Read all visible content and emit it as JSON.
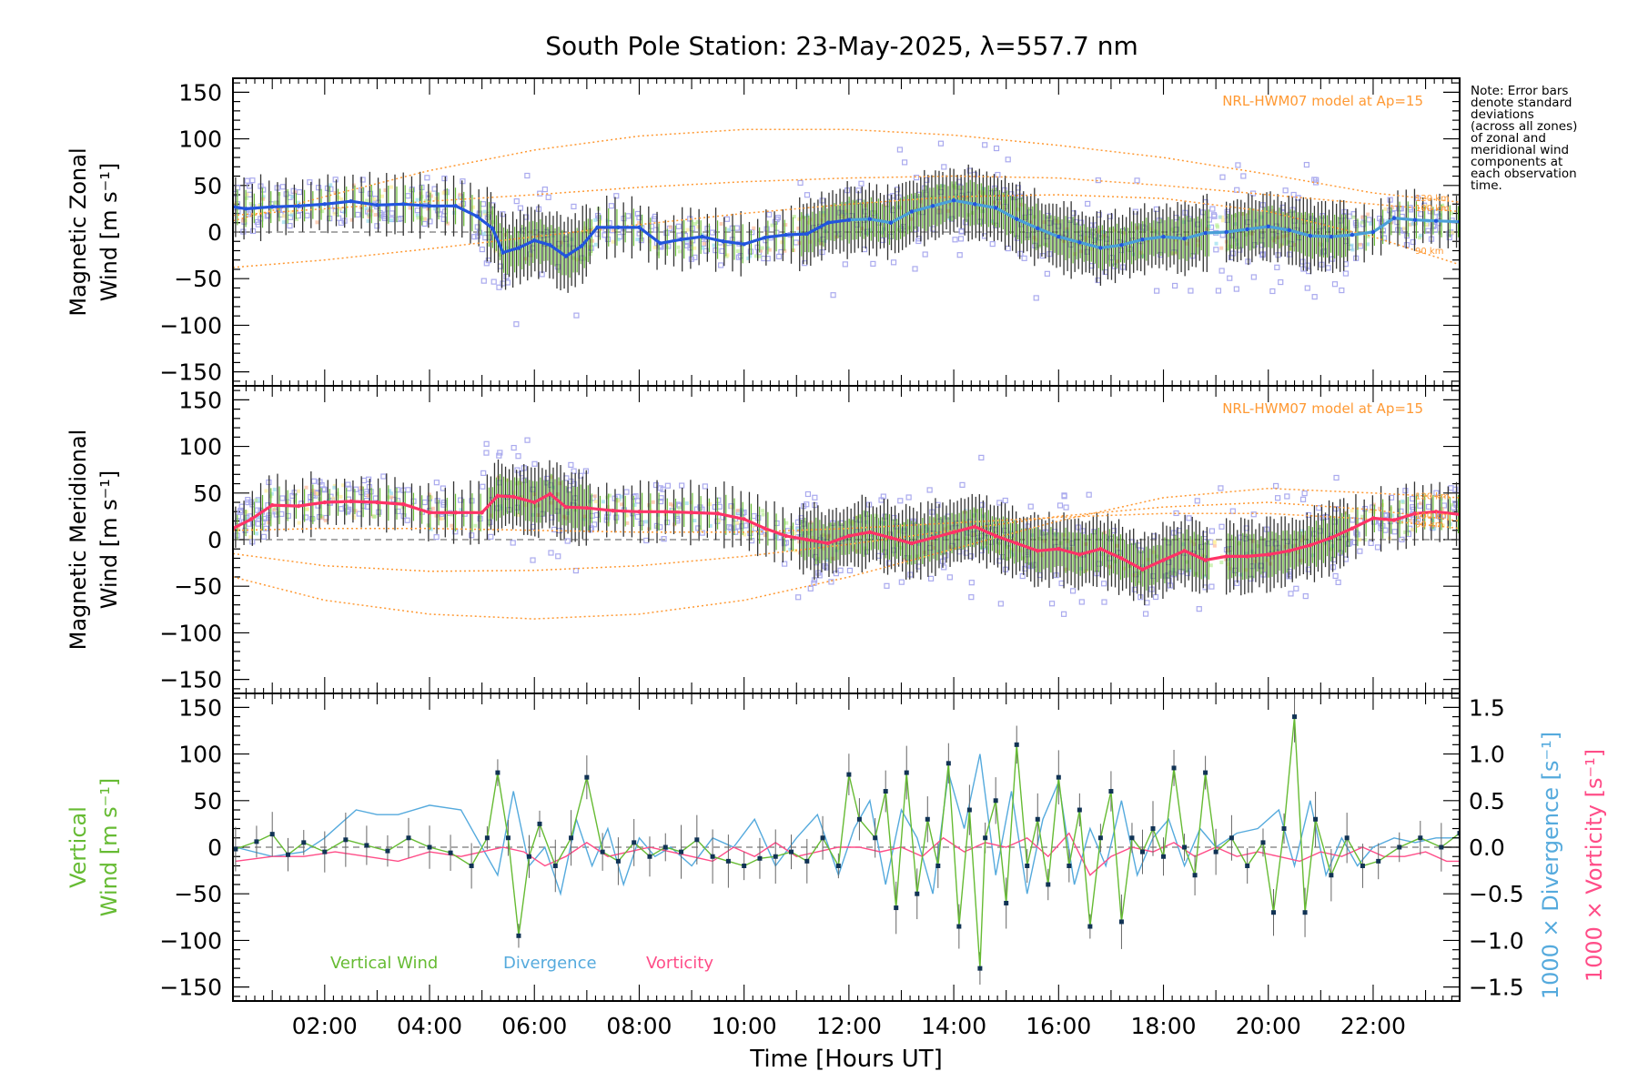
{
  "colors": {
    "zonal_line": "#2255dd",
    "zonal_line_late": "#4a9fd8",
    "meridional_line": "#ff3366",
    "vertical_wind": "#66bb33",
    "divergence": "#55aadd",
    "vorticity": "#ff4d88",
    "model": "#ff9933",
    "scatter": "#aaaaee",
    "errorbar": "#333333"
  },
  "note_lines": [
    "Note: Error bars",
    "denote standard",
    "deviations",
    "(across all zones)",
    "of zonal and",
    "meridional wind",
    "components at",
    "each observation",
    "time."
  ],
  "chart_data": [
    {
      "type": "line",
      "panel": "zonal",
      "title": "South Pole Station: 23-May-2025, λ=557.7 nm",
      "ylabel": [
        "Magnetic Zonal",
        "Wind [m s⁻¹]"
      ],
      "ylim": [
        -165,
        165
      ],
      "xlim": [
        0.25,
        23.65
      ],
      "yticks": [
        -150,
        -100,
        -50,
        0,
        50,
        100,
        150
      ],
      "annotation": "NRL-HWM07 model at Ap=15",
      "model_labels": [
        "120 km",
        "100 km",
        "90 km"
      ],
      "series": [
        {
          "name": "Magnetic Zonal Wind",
          "x": [
            0.25,
            0.5,
            1.0,
            1.5,
            2.0,
            2.5,
            3.0,
            3.5,
            4.0,
            4.5,
            4.9,
            5.2,
            5.4,
            5.7,
            6.0,
            6.3,
            6.6,
            6.9,
            7.2,
            7.6,
            8.0,
            8.4,
            8.8,
            9.2,
            9.6,
            10.0,
            10.4,
            10.8,
            11.2,
            11.6,
            12.0,
            12.4,
            12.8,
            13.2,
            13.6,
            14.0,
            14.4,
            14.8,
            15.2,
            15.6,
            16.0,
            16.4,
            16.8,
            17.2,
            17.6,
            18.0,
            18.4,
            18.8,
            19.2,
            19.6,
            20.0,
            20.4,
            20.8,
            21.2,
            21.6,
            22.0,
            22.4,
            22.8,
            23.2,
            23.65
          ],
          "y": [
            27,
            25,
            27,
            28,
            30,
            33,
            29,
            30,
            28,
            28,
            17,
            4,
            -22,
            -17,
            -9,
            -14,
            -26,
            -15,
            5,
            5,
            5,
            -12,
            -8,
            -5,
            -10,
            -13,
            -6,
            -3,
            -2,
            10,
            13,
            14,
            10,
            22,
            28,
            34,
            30,
            26,
            14,
            4,
            -5,
            -11,
            -17,
            -14,
            -8,
            -5,
            -7,
            -1,
            0,
            3,
            6,
            2,
            -4,
            -5,
            -3,
            0,
            15,
            13,
            12,
            11
          ]
        },
        {
          "name": "HWM07 120 km",
          "x": [
            0.25,
            2,
            4,
            6,
            8,
            10,
            12,
            14,
            16,
            18,
            20,
            22,
            23.65
          ],
          "y": [
            12,
            38,
            66,
            88,
            103,
            110,
            110,
            104,
            93,
            80,
            62,
            42,
            32
          ]
        },
        {
          "name": "HWM07 100 km",
          "x": [
            0.25,
            2,
            4,
            6,
            8,
            10,
            12,
            14,
            16,
            18,
            20,
            22,
            23.65
          ],
          "y": [
            18,
            25,
            33,
            40,
            48,
            54,
            58,
            60,
            58,
            50,
            40,
            30,
            22
          ]
        },
        {
          "name": "HWM07 90 km",
          "x": [
            0.25,
            2,
            4,
            6,
            8,
            10,
            12,
            14,
            16,
            18,
            20,
            22,
            23.65
          ],
          "y": [
            -38,
            -30,
            -18,
            -5,
            8,
            20,
            30,
            38,
            40,
            36,
            22,
            -5,
            -35
          ]
        }
      ],
      "data_range": [
        -95,
        135
      ]
    },
    {
      "type": "line",
      "panel": "meridional",
      "ylabel": [
        "Magnetic Meridional",
        "Wind [m s⁻¹]"
      ],
      "ylim": [
        -165,
        165
      ],
      "xlim": [
        0.25,
        23.65
      ],
      "yticks": [
        -150,
        -100,
        -50,
        0,
        50,
        100,
        150
      ],
      "annotation": "NRL-HWM07 model at Ap=15",
      "model_labels": [
        "120 km",
        "100 km",
        "90 km"
      ],
      "series": [
        {
          "name": "Magnetic Meridional Wind",
          "x": [
            0.25,
            0.6,
            1.0,
            1.5,
            2.0,
            2.5,
            3.0,
            3.5,
            4.0,
            4.5,
            5.0,
            5.3,
            5.6,
            6.0,
            6.3,
            6.6,
            7.0,
            7.5,
            8.0,
            8.5,
            9.0,
            9.5,
            10.0,
            10.4,
            10.8,
            11.2,
            11.6,
            12.0,
            12.4,
            12.8,
            13.2,
            13.6,
            14.0,
            14.4,
            14.8,
            15.2,
            15.6,
            16.0,
            16.4,
            16.8,
            17.2,
            17.6,
            18.0,
            18.4,
            18.8,
            19.2,
            19.6,
            20.0,
            20.4,
            20.8,
            21.2,
            21.6,
            22.0,
            22.4,
            22.8,
            23.2,
            23.65
          ],
          "y": [
            12,
            22,
            37,
            36,
            40,
            41,
            40,
            38,
            29,
            29,
            29,
            47,
            46,
            40,
            49,
            35,
            34,
            31,
            30,
            30,
            29,
            28,
            22,
            12,
            4,
            0,
            -4,
            4,
            8,
            2,
            -4,
            2,
            8,
            14,
            4,
            -4,
            -12,
            -10,
            -16,
            -10,
            -20,
            -32,
            -22,
            -12,
            -22,
            -18,
            -18,
            -16,
            -12,
            -6,
            2,
            12,
            23,
            21,
            28,
            30,
            27
          ]
        },
        {
          "name": "HWM07 120 km",
          "x": [
            0.25,
            2,
            4,
            6,
            8,
            10,
            12,
            14,
            16,
            18,
            20,
            22,
            23.65
          ],
          "y": [
            -40,
            -65,
            -80,
            -85,
            -80,
            -65,
            -40,
            -10,
            20,
            45,
            55,
            50,
            45
          ]
        },
        {
          "name": "HWM07 100 km",
          "x": [
            0.25,
            2,
            4,
            6,
            8,
            10,
            12,
            14,
            16,
            18,
            20,
            22,
            23.65
          ],
          "y": [
            -15,
            -28,
            -34,
            -33,
            -28,
            -18,
            -5,
            10,
            25,
            35,
            40,
            32,
            20
          ]
        },
        {
          "name": "HWM07 90 km",
          "x": [
            0.25,
            2,
            4,
            6,
            8,
            10,
            12,
            14,
            16,
            18,
            20,
            22,
            23.65
          ],
          "y": [
            10,
            12,
            12,
            10,
            8,
            8,
            12,
            18,
            24,
            28,
            28,
            22,
            12
          ]
        }
      ],
      "data_range": [
        -130,
        110
      ]
    },
    {
      "type": "line",
      "panel": "vertical",
      "ylabel": [
        "Vertical",
        "Wind [m s⁻¹]"
      ],
      "ylabel_right": [
        "1000 × Divergence [s⁻¹]",
        "1000 × Vorticity [s⁻¹]"
      ],
      "ylim": [
        -165,
        165
      ],
      "ylim_right": [
        -1.65,
        1.65
      ],
      "xlim": [
        0.25,
        23.65
      ],
      "yticks": [
        -150,
        -100,
        -50,
        0,
        50,
        100,
        150
      ],
      "yticks_right": [
        -1.5,
        -1.0,
        -0.5,
        0.0,
        0.5,
        1.0,
        1.5
      ],
      "xticks": [
        "02:00",
        "04:00",
        "06:00",
        "08:00",
        "10:00",
        "12:00",
        "14:00",
        "16:00",
        "18:00",
        "20:00",
        "22:00"
      ],
      "xtick_values": [
        2,
        4,
        6,
        8,
        10,
        12,
        14,
        16,
        18,
        20,
        22
      ],
      "xlabel": "Time [Hours UT]",
      "legend": [
        "Vertical Wind",
        "Divergence",
        "Vorticity"
      ],
      "series": [
        {
          "name": "Vertical Wind",
          "x": [
            0.3,
            0.7,
            1.0,
            1.3,
            1.6,
            2.0,
            2.4,
            2.8,
            3.2,
            3.6,
            4.0,
            4.4,
            4.8,
            5.1,
            5.3,
            5.5,
            5.7,
            5.9,
            6.1,
            6.4,
            6.7,
            7.0,
            7.3,
            7.6,
            7.9,
            8.2,
            8.5,
            8.8,
            9.1,
            9.4,
            9.7,
            10.0,
            10.3,
            10.6,
            10.9,
            11.2,
            11.5,
            11.8,
            12.0,
            12.2,
            12.5,
            12.7,
            12.9,
            13.1,
            13.3,
            13.5,
            13.7,
            13.9,
            14.1,
            14.3,
            14.5,
            14.6,
            14.8,
            15.0,
            15.2,
            15.4,
            15.6,
            15.8,
            16.0,
            16.2,
            16.4,
            16.6,
            16.8,
            17.0,
            17.2,
            17.4,
            17.6,
            17.8,
            18.0,
            18.2,
            18.4,
            18.6,
            18.8,
            19.0,
            19.3,
            19.6,
            19.9,
            20.1,
            20.3,
            20.5,
            20.7,
            20.9,
            21.2,
            21.5,
            21.8,
            22.1,
            22.5,
            22.9,
            23.3,
            23.65
          ],
          "y": [
            -2,
            6,
            14,
            -8,
            5,
            -5,
            8,
            2,
            -4,
            10,
            0,
            -6,
            -20,
            10,
            80,
            10,
            -95,
            -10,
            25,
            -20,
            10,
            75,
            -5,
            -15,
            5,
            -10,
            0,
            -5,
            8,
            -10,
            -15,
            -20,
            -12,
            -10,
            -5,
            -15,
            10,
            -20,
            78,
            30,
            10,
            60,
            -65,
            80,
            -50,
            30,
            -20,
            90,
            -85,
            40,
            -130,
            10,
            50,
            -60,
            110,
            -20,
            30,
            -40,
            75,
            -20,
            40,
            -85,
            10,
            60,
            -80,
            10,
            -5,
            20,
            -10,
            85,
            0,
            -30,
            80,
            -5,
            10,
            -20,
            5,
            -70,
            20,
            140,
            -70,
            30,
            -30,
            10,
            -20,
            -15,
            0,
            10,
            0,
            15
          ]
        },
        {
          "name": "Divergence",
          "x": [
            0.3,
            1.0,
            1.6,
            2.0,
            2.6,
            3.0,
            3.4,
            4.0,
            4.6,
            5.0,
            5.3,
            5.6,
            5.9,
            6.2,
            6.5,
            6.8,
            7.1,
            7.4,
            7.7,
            8.0,
            8.3,
            8.6,
            9.0,
            9.4,
            9.8,
            10.2,
            10.6,
            11.0,
            11.4,
            11.8,
            12.1,
            12.4,
            12.7,
            13.0,
            13.3,
            13.6,
            13.9,
            14.2,
            14.5,
            14.8,
            15.1,
            15.4,
            15.7,
            16.0,
            16.3,
            16.6,
            16.9,
            17.2,
            17.5,
            17.8,
            18.1,
            18.4,
            18.7,
            19.0,
            19.4,
            19.8,
            20.2,
            20.5,
            20.8,
            21.1,
            21.4,
            21.7,
            22.0,
            22.4,
            22.8,
            23.2,
            23.65
          ],
          "y": [
            0.0,
            -0.1,
            -0.05,
            0.1,
            0.4,
            0.35,
            0.35,
            0.45,
            0.4,
            0.0,
            -0.3,
            0.6,
            -0.2,
            0.0,
            -0.5,
            0.3,
            -0.2,
            0.2,
            -0.4,
            0.1,
            -0.1,
            0.0,
            -0.2,
            0.1,
            0.0,
            0.3,
            -0.2,
            0.1,
            0.35,
            -0.3,
            0.2,
            0.5,
            -0.4,
            0.4,
            0.1,
            -0.5,
            0.8,
            0.2,
            1.0,
            -0.3,
            0.6,
            -0.5,
            0.3,
            0.7,
            -0.4,
            0.2,
            -0.2,
            0.5,
            -0.3,
            0.1,
            0.3,
            -0.2,
            0.2,
            0.0,
            0.15,
            0.2,
            0.4,
            -0.2,
            0.5,
            -0.3,
            0.1,
            -0.2,
            0.0,
            0.1,
            0.05,
            0.1,
            0.1
          ]
        },
        {
          "name": "Vorticity",
          "x": [
            0.3,
            1.0,
            1.6,
            2.2,
            2.8,
            3.4,
            4.0,
            4.6,
            5.0,
            5.4,
            5.8,
            6.2,
            6.6,
            7.0,
            7.4,
            7.8,
            8.2,
            8.6,
            9.0,
            9.4,
            9.8,
            10.2,
            10.6,
            11.0,
            11.4,
            11.8,
            12.2,
            12.6,
            13.0,
            13.4,
            13.8,
            14.2,
            14.6,
            15.0,
            15.4,
            15.8,
            16.2,
            16.6,
            17.0,
            17.4,
            17.8,
            18.2,
            18.6,
            19.0,
            19.4,
            19.8,
            20.2,
            20.6,
            21.0,
            21.4,
            21.8,
            22.2,
            22.6,
            23.0,
            23.4,
            23.65
          ],
          "y": [
            -0.15,
            -0.1,
            -0.1,
            -0.05,
            -0.1,
            -0.15,
            -0.05,
            -0.1,
            -0.05,
            0.0,
            -0.05,
            -0.2,
            -0.1,
            0.05,
            -0.1,
            -0.05,
            0.0,
            -0.05,
            -0.1,
            -0.15,
            0.0,
            -0.1,
            0.05,
            -0.1,
            -0.05,
            0.0,
            0.0,
            -0.05,
            0.0,
            -0.1,
            0.1,
            -0.05,
            0.05,
            0.0,
            0.1,
            -0.1,
            0.15,
            -0.3,
            -0.1,
            0.0,
            -0.05,
            0.05,
            -0.1,
            0.0,
            -0.1,
            -0.05,
            -0.1,
            -0.15,
            -0.05,
            -0.1,
            0.0,
            -0.1,
            -0.1,
            -0.05,
            -0.15,
            -0.15
          ]
        }
      ]
    }
  ]
}
